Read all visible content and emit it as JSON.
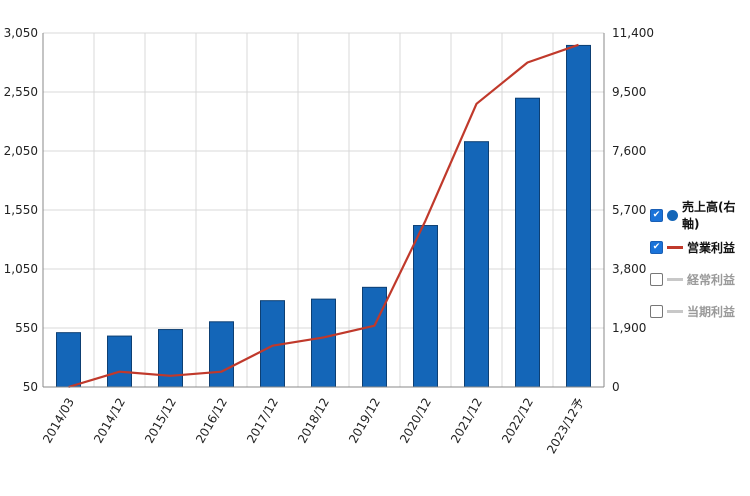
{
  "chart_data": {
    "type": "bar+line",
    "categories": [
      "2014/03",
      "2014/12",
      "2015/12",
      "2016/12",
      "2017/12",
      "2018/12",
      "2019/12",
      "2020/12",
      "2021/12",
      "2022/12",
      "2023/12予"
    ],
    "left_axis": {
      "ticks": [
        "50",
        "550",
        "1,050",
        "1,550",
        "2,050",
        "2,550",
        "3,050"
      ],
      "ylim": [
        50,
        3050
      ]
    },
    "right_axis": {
      "ticks": [
        "0",
        "1,900",
        "3,800",
        "5,700",
        "7,600",
        "9,500",
        "11,400"
      ],
      "ylim": [
        0,
        11400
      ]
    },
    "series": [
      {
        "name": "売上高(右軸)",
        "type": "bar",
        "axis": "right",
        "values": [
          1750,
          1640,
          1850,
          2100,
          2780,
          2830,
          3210,
          5200,
          7900,
          9300,
          11000
        ]
      },
      {
        "name": "営業利益",
        "type": "line",
        "axis": "left",
        "values": [
          50,
          180,
          145,
          180,
          400,
          470,
          570,
          1460,
          2450,
          2800,
          2950
        ]
      }
    ],
    "grid": true
  },
  "legend": {
    "items": [
      {
        "label": "売上高(右軸)",
        "checked": true,
        "marker": "dot",
        "color": "#1466b8"
      },
      {
        "label": "営業利益",
        "checked": true,
        "marker": "line",
        "color": "#c0392b"
      },
      {
        "label": "経常利益",
        "checked": false,
        "marker": "line",
        "color": "#c8c8c8"
      },
      {
        "label": "当期利益",
        "checked": false,
        "marker": "line",
        "color": "#c8c8c8"
      }
    ]
  },
  "colors": {
    "bar": "#1466b8",
    "bar_stroke": "#0d3f73",
    "line": "#c0392b",
    "grid": "#d9d9d9"
  }
}
